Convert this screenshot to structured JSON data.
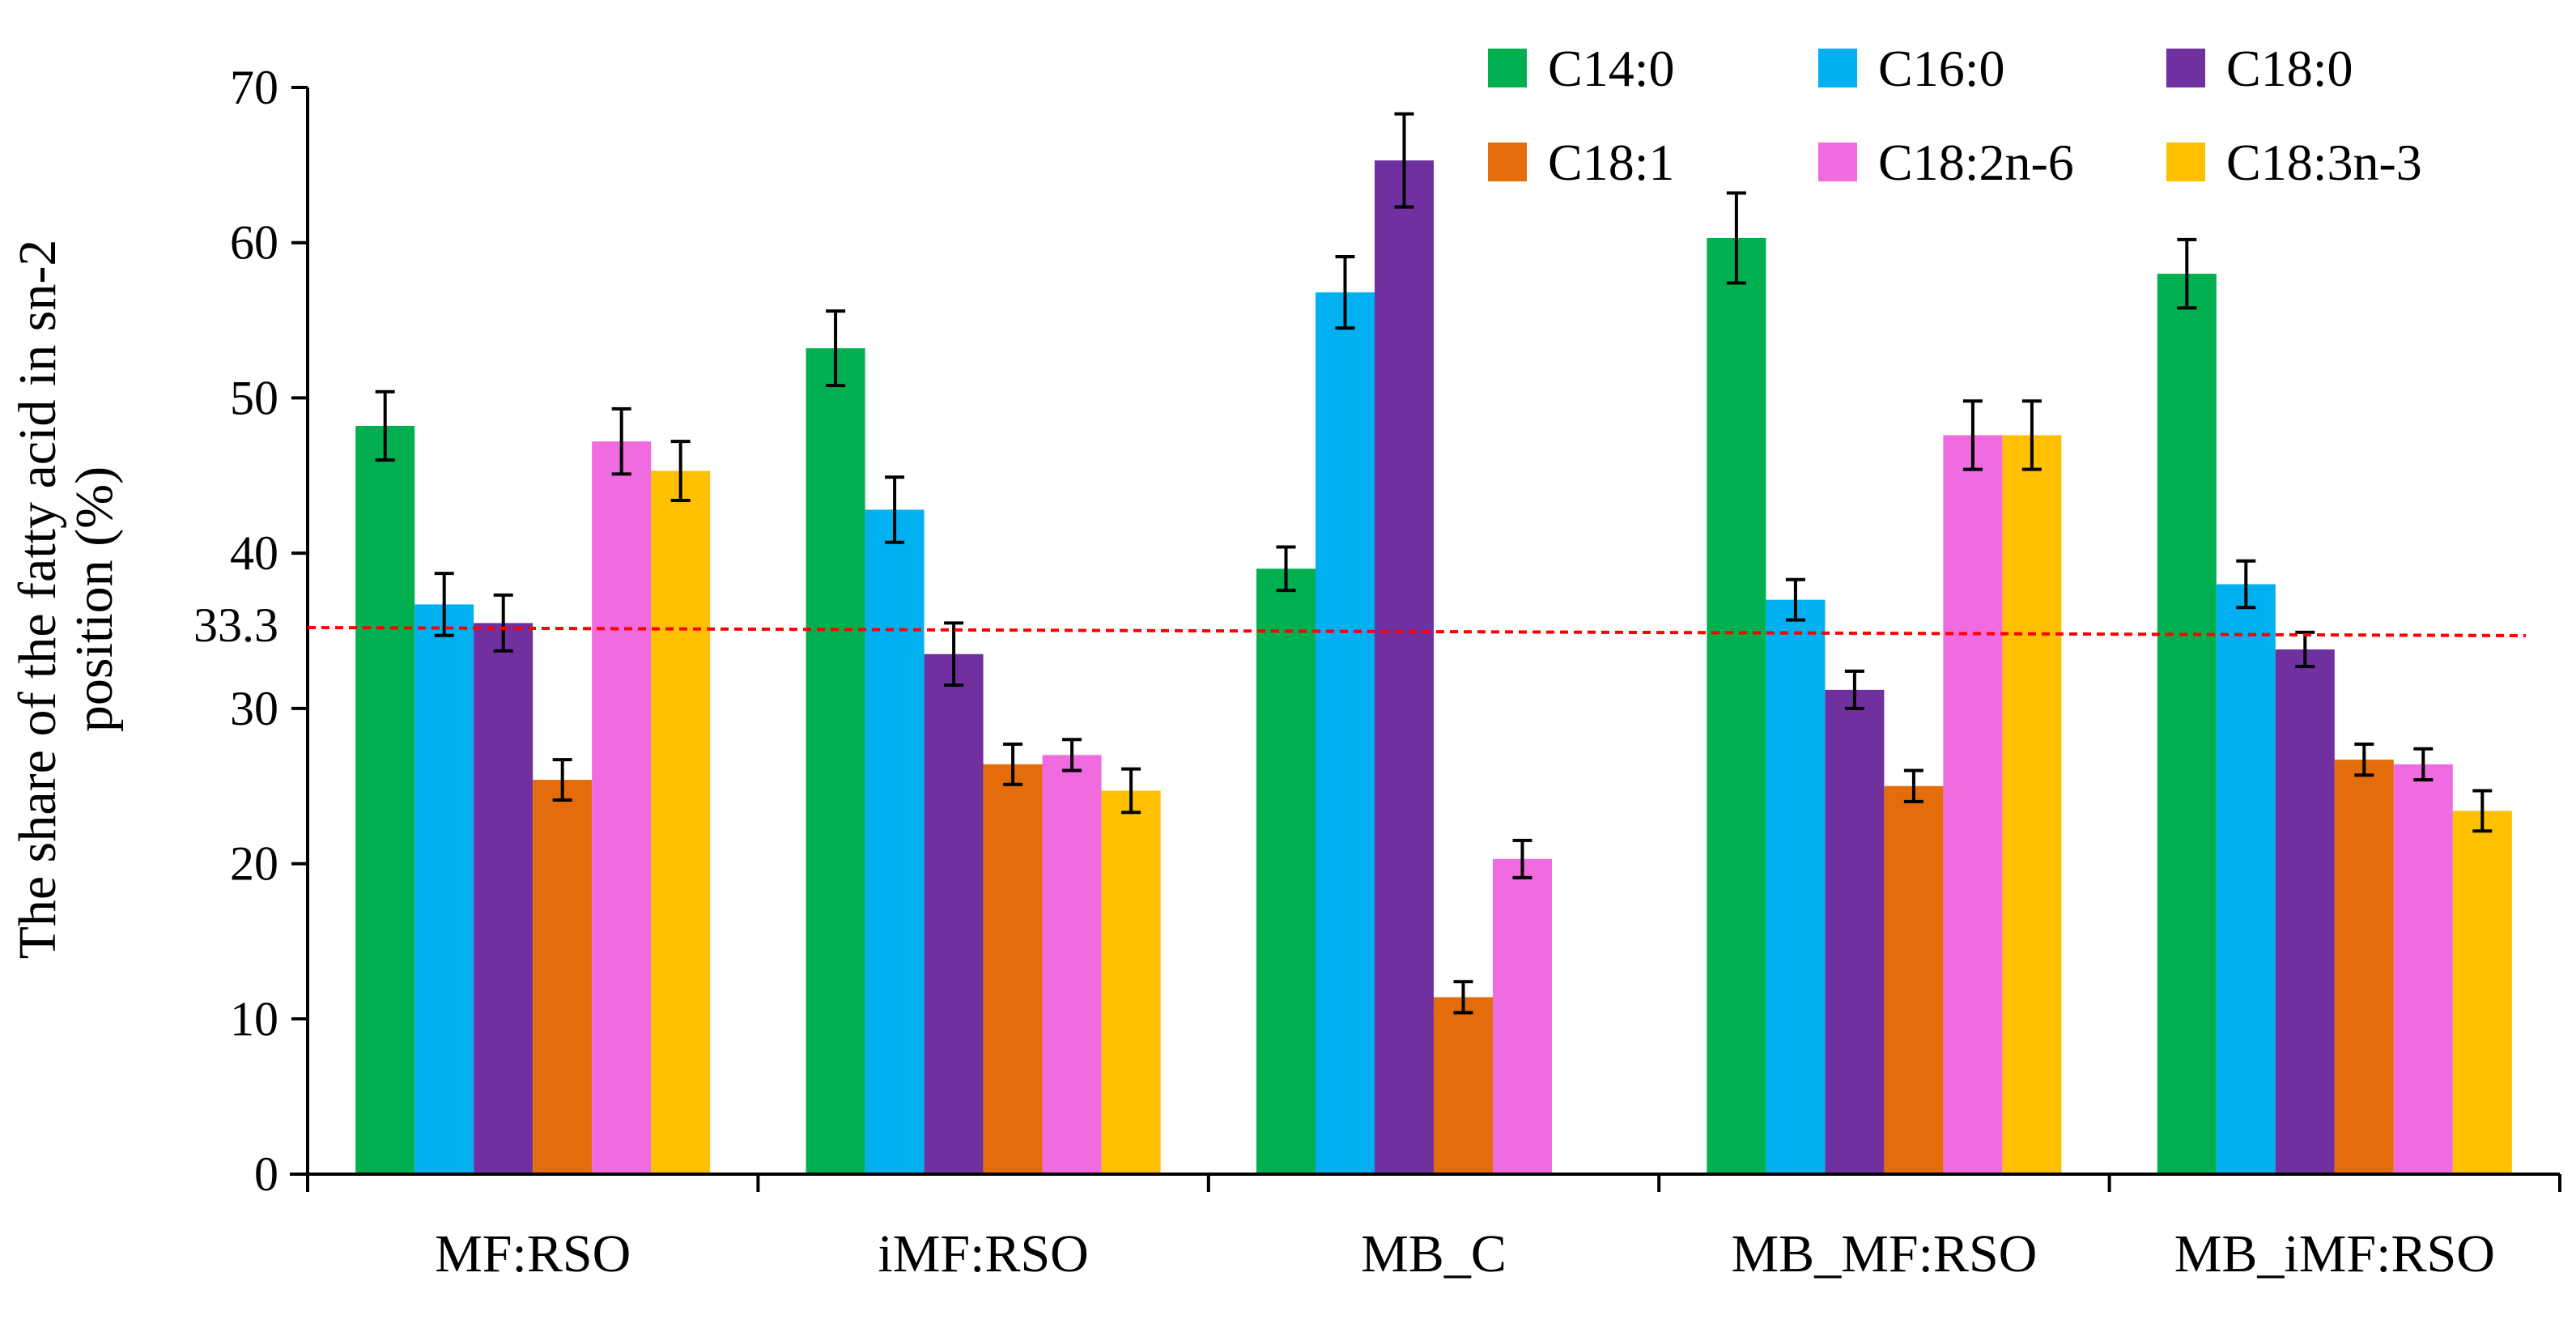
{
  "chart_data": {
    "type": "bar",
    "title": "",
    "xlabel": "",
    "ylabel": "The share of the fatty acid in sn-2 position (%)",
    "ylabel_lines": [
      "The share of the fatty acid in sn-2",
      "position (%)"
    ],
    "ylim": [
      0,
      70
    ],
    "yticks": [
      0,
      10,
      20,
      30,
      40,
      50,
      60,
      70
    ],
    "grid": false,
    "legend_position": "top-right",
    "categories": [
      "MF:RSO",
      "iMF:RSO",
      "MB_C",
      "MB_MF:RSO",
      "MB_iMF:RSO"
    ],
    "series": [
      {
        "name": "C14:0",
        "color": "#00b050",
        "values": [
          48.2,
          53.2,
          39.0,
          60.3,
          58.0
        ],
        "errors": [
          2.2,
          2.4,
          1.4,
          2.9,
          2.2
        ]
      },
      {
        "name": "C16:0",
        "color": "#00b0f0",
        "values": [
          36.7,
          42.8,
          56.8,
          37.0,
          38.0
        ],
        "errors": [
          2.0,
          2.1,
          2.3,
          1.3,
          1.5
        ]
      },
      {
        "name": "C18:0",
        "color": "#7030a0",
        "values": [
          35.5,
          33.5,
          65.3,
          31.2,
          33.8
        ],
        "errors": [
          1.8,
          2.0,
          3.0,
          1.2,
          1.1
        ]
      },
      {
        "name": "C18:1",
        "color": "#e46c0a",
        "values": [
          25.4,
          26.4,
          11.4,
          25.0,
          26.7
        ],
        "errors": [
          1.3,
          1.3,
          1.0,
          1.0,
          1.0
        ]
      },
      {
        "name": "C18:2n-6",
        "color": "#f06ae0",
        "values": [
          47.2,
          27.0,
          20.3,
          47.6,
          26.4
        ],
        "errors": [
          2.1,
          1.0,
          1.2,
          2.2,
          1.0
        ]
      },
      {
        "name": "C18:3n-3",
        "color": "#ffc000",
        "values": [
          45.3,
          24.7,
          null,
          47.6,
          23.4
        ],
        "errors": [
          1.9,
          1.4,
          null,
          2.2,
          1.3
        ]
      }
    ],
    "reference_line": {
      "value": 33.3,
      "label": "33.3",
      "color": "#ff0000",
      "style": "dashed"
    }
  }
}
